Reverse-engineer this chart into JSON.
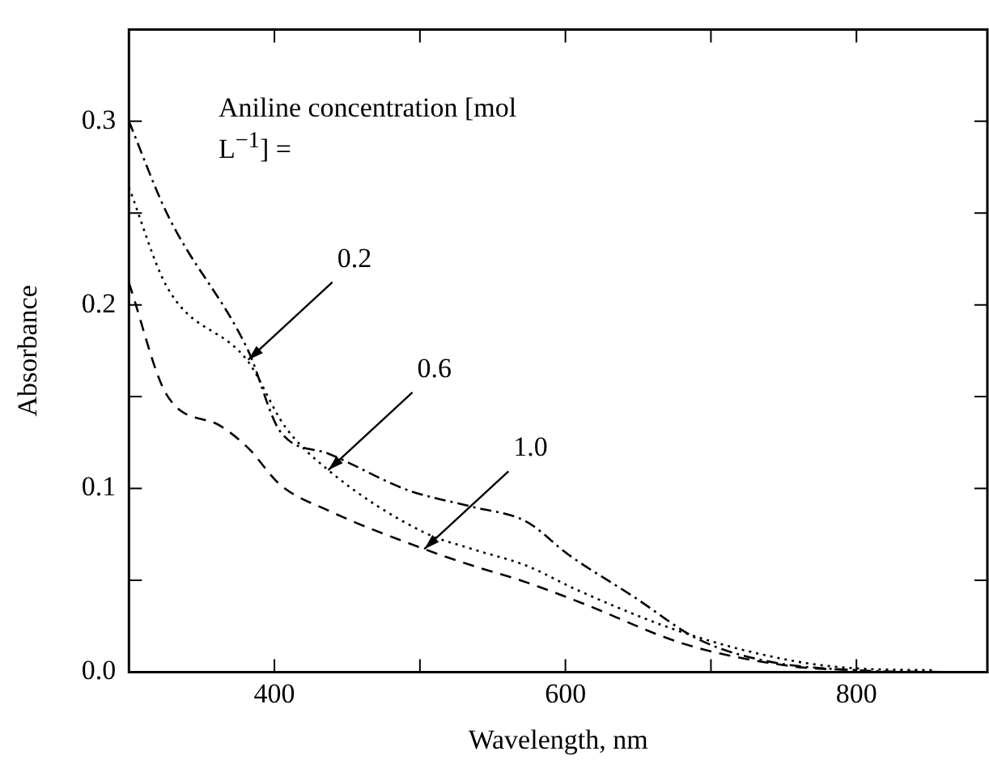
{
  "chart_data": {
    "type": "line",
    "xlabel": "Wavelength, nm",
    "ylabel": "Absorbance",
    "legend_title": "Aniline concentration [mol L$^{−1}$] =",
    "xlim": [
      300,
      890
    ],
    "xticks": [
      400,
      {
        "value": 500,
        "label": null
      },
      600,
      {
        "value": 700,
        "label": null
      },
      800
    ],
    "ylim": [
      0,
      0.35
    ],
    "yticks": [
      {
        "value": 0,
        "label": "0.0"
      },
      {
        "value": 0.05,
        "label": null
      },
      0.1,
      {
        "value": 0.15,
        "label": null
      },
      0.2,
      {
        "value": 0.25,
        "label": null
      },
      0.3
    ],
    "marker": "none",
    "grid": false,
    "legend": false,
    "series": [
      {
        "color": "#000000",
        "line_style": "dashdot",
        "x": [
          300,
          326,
          382,
          404,
          437,
          492,
          536,
          573,
          602,
          647,
          691,
          738,
          800,
          860
        ],
        "values": [
          0.3,
          0.25,
          0.175,
          0.131,
          0.119,
          0.099,
          0.09,
          0.082,
          0.064,
          0.041,
          0.018,
          0.006,
          0.001,
          0.0
        ]
      },
      {
        "color": "#000000",
        "line_style": "dotted",
        "x": [
          300,
          326,
          382,
          407,
          437,
          503,
          536,
          573,
          610,
          683,
          757,
          800,
          853
        ],
        "values": [
          0.264,
          0.21,
          0.169,
          0.134,
          0.11,
          0.076,
          0.067,
          0.058,
          0.044,
          0.021,
          0.006,
          0.002,
          0.001
        ]
      },
      {
        "color": "#000000",
        "line_style": "dashed",
        "x": [
          300,
          326,
          363,
          382,
          404,
          437,
          503,
          536,
          569,
          610,
          683,
          757,
          800
        ],
        "values": [
          0.212,
          0.151,
          0.134,
          0.122,
          0.102,
          0.088,
          0.067,
          0.058,
          0.05,
          0.038,
          0.015,
          0.003,
          0.001
        ]
      }
    ],
    "annotations": [
      {
        "text": "0.2",
        "x": 382,
        "y": 0.17
      },
      {
        "text": "0.6",
        "x": 437,
        "y": 0.11
      },
      {
        "text": "1.0",
        "x": 503,
        "y": 0.067
      }
    ]
  }
}
